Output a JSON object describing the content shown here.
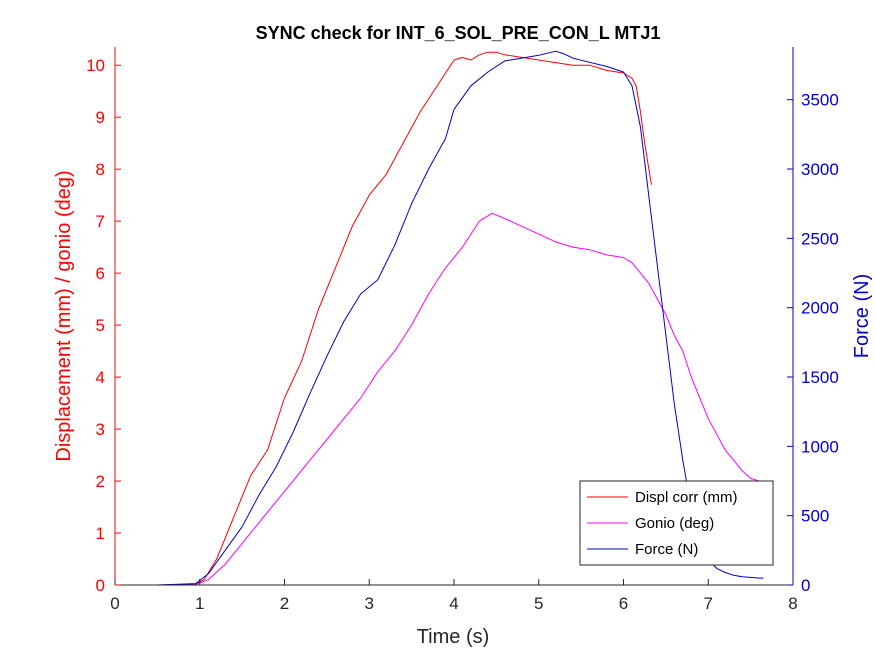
{
  "chart_data": {
    "type": "line",
    "title": "SYNC check for INT_6_SOL_PRE_CON_L MTJ1",
    "xlabel": "Time (s)",
    "ylabel_left": "Displacement (mm) / gonio (deg)",
    "ylabel_right": "Force (N)",
    "xlim": [
      0,
      8
    ],
    "ylim_left": [
      0,
      10.35
    ],
    "ylim_right": [
      0,
      3880
    ],
    "xticks": [
      "0",
      "1",
      "2",
      "3",
      "4",
      "5",
      "6",
      "7",
      "8"
    ],
    "yticks_left": [
      "0",
      "1",
      "2",
      "3",
      "4",
      "5",
      "6",
      "7",
      "8",
      "9",
      "10"
    ],
    "yticks_right": [
      "0",
      "500",
      "1000",
      "1500",
      "2000",
      "2500",
      "3000",
      "3500"
    ],
    "grid": false,
    "legend_position": "bottom-right",
    "series": [
      {
        "name": "Displ corr (mm)",
        "axis": "left",
        "color": "#ff0000",
        "x": [
          0,
          0.5,
          0.95,
          1.05,
          1.2,
          1.4,
          1.6,
          1.8,
          2.0,
          2.2,
          2.4,
          2.6,
          2.8,
          3.0,
          3.2,
          3.4,
          3.6,
          3.8,
          4.0,
          4.1,
          4.2,
          4.3,
          4.4,
          4.5,
          4.6,
          4.8,
          5.0,
          5.2,
          5.4,
          5.6,
          5.8,
          6.0,
          6.1,
          6.15,
          6.2,
          6.25,
          6.3,
          6.33
        ],
        "y": [
          0,
          0,
          0.02,
          0.1,
          0.5,
          1.3,
          2.1,
          2.6,
          3.6,
          4.3,
          5.3,
          6.1,
          6.9,
          7.5,
          7.9,
          8.5,
          9.1,
          9.6,
          10.1,
          10.15,
          10.1,
          10.2,
          10.25,
          10.25,
          10.2,
          10.15,
          10.1,
          10.05,
          10.0,
          10.0,
          9.9,
          9.85,
          9.75,
          9.6,
          9.1,
          8.5,
          8.0,
          7.7
        ]
      },
      {
        "name": "Gonio (deg)",
        "axis": "left",
        "color": "#ff00ff",
        "x": [
          0,
          0.5,
          0.95,
          1.1,
          1.3,
          1.5,
          1.7,
          1.9,
          2.1,
          2.3,
          2.5,
          2.7,
          2.9,
          3.1,
          3.3,
          3.5,
          3.7,
          3.9,
          4.1,
          4.3,
          4.45,
          4.6,
          4.8,
          5.0,
          5.2,
          5.4,
          5.6,
          5.8,
          6.0,
          6.1,
          6.2,
          6.3,
          6.4,
          6.5,
          6.6,
          6.7,
          6.8,
          6.9,
          7.0,
          7.1,
          7.2,
          7.3,
          7.4,
          7.5,
          7.6,
          7.65
        ],
        "y": [
          0,
          0,
          0.01,
          0.1,
          0.4,
          0.8,
          1.2,
          1.6,
          2.0,
          2.4,
          2.8,
          3.2,
          3.6,
          4.1,
          4.5,
          5.0,
          5.6,
          6.1,
          6.5,
          7.0,
          7.15,
          7.05,
          6.9,
          6.75,
          6.6,
          6.5,
          6.45,
          6.35,
          6.3,
          6.2,
          6.0,
          5.8,
          5.5,
          5.2,
          4.8,
          4.5,
          4.0,
          3.6,
          3.2,
          2.9,
          2.6,
          2.4,
          2.2,
          2.05,
          2.0,
          1.95
        ]
      },
      {
        "name": "Force (N)",
        "axis": "right",
        "color": "#0000cc",
        "x": [
          0,
          0.5,
          0.95,
          1.1,
          1.3,
          1.5,
          1.7,
          1.9,
          2.1,
          2.3,
          2.5,
          2.7,
          2.9,
          3.1,
          3.3,
          3.5,
          3.7,
          3.9,
          4.0,
          4.2,
          4.4,
          4.6,
          4.8,
          5.0,
          5.2,
          5.3,
          5.4,
          5.6,
          5.8,
          6.0,
          6.1,
          6.2,
          6.3,
          6.4,
          6.5,
          6.6,
          6.7,
          6.8,
          6.9,
          7.0,
          7.1,
          7.2,
          7.3,
          7.4,
          7.5,
          7.6,
          7.65
        ],
        "y": [
          0,
          0,
          10,
          80,
          250,
          420,
          650,
          850,
          1100,
          1380,
          1650,
          1900,
          2100,
          2200,
          2450,
          2750,
          3000,
          3220,
          3430,
          3600,
          3700,
          3780,
          3800,
          3820,
          3850,
          3830,
          3800,
          3770,
          3740,
          3700,
          3600,
          3300,
          2800,
          2300,
          1800,
          1300,
          900,
          550,
          300,
          180,
          120,
          90,
          70,
          60,
          55,
          50,
          50
        ]
      }
    ]
  }
}
